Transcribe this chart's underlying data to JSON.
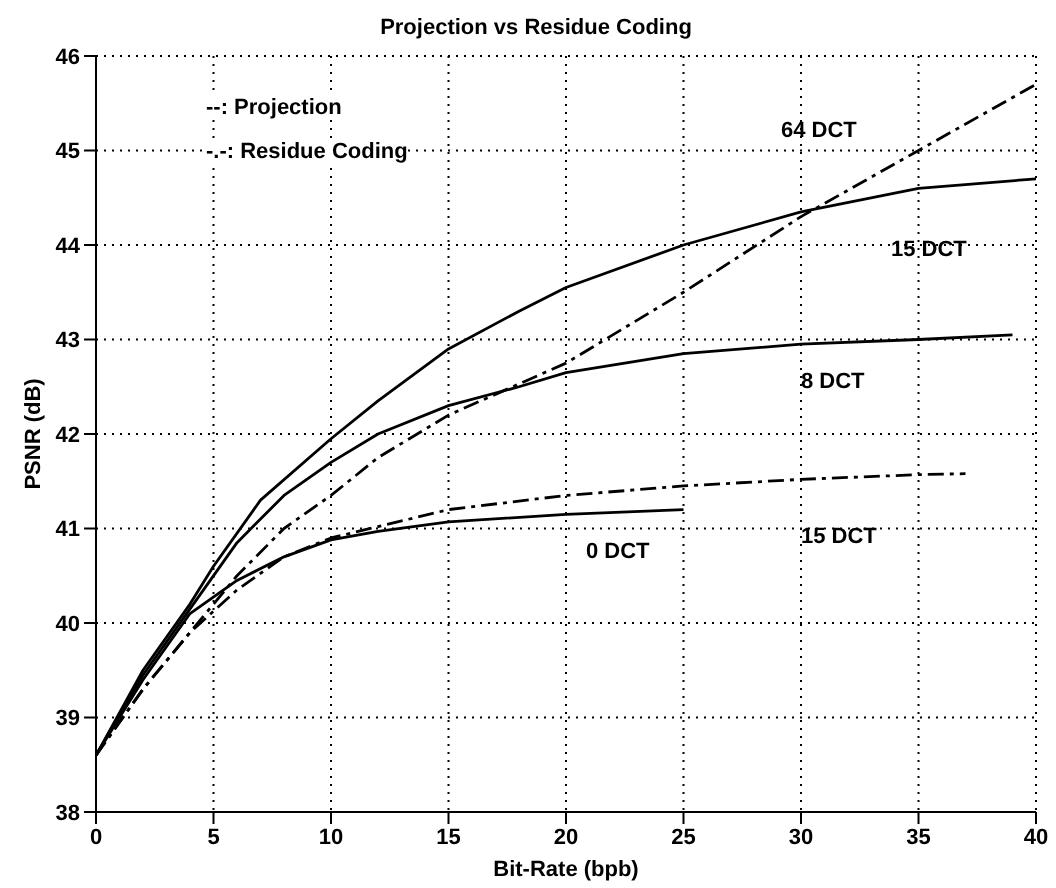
{
  "chart_data": {
    "type": "line",
    "title": "Projection vs Residue Coding",
    "xlabel": "Bit-Rate (bpb)",
    "ylabel": "PSNR (dB)",
    "annotations": [
      "--: Projection",
      "-.-: Residue Coding"
    ],
    "xlim": [
      0,
      40
    ],
    "xticks": [
      0,
      5,
      10,
      15,
      20,
      25,
      30,
      35,
      40
    ],
    "ylim": [
      38,
      46
    ],
    "yticks": [
      38,
      39,
      40,
      41,
      42,
      43,
      44,
      45,
      46
    ],
    "grid": true,
    "legend": false,
    "marker": "none",
    "series": [
      {
        "name": "64 DCT",
        "color": "#000000",
        "line_style": "dashdot",
        "x": [
          0,
          2,
          4,
          6,
          8,
          10,
          12,
          15,
          20,
          25,
          30,
          35,
          40
        ],
        "values": [
          38.6,
          39.3,
          39.9,
          40.5,
          41.0,
          41.35,
          41.75,
          42.2,
          42.75,
          43.5,
          44.3,
          45.0,
          45.7
        ]
      },
      {
        "name": "15 DCT",
        "color": "#000000",
        "line_style": "solid",
        "x": [
          0,
          2,
          4,
          5,
          7,
          10,
          12,
          15,
          18,
          20,
          25,
          30,
          35,
          40
        ],
        "values": [
          38.6,
          39.5,
          40.2,
          40.6,
          41.3,
          41.95,
          42.35,
          42.9,
          43.3,
          43.55,
          44.0,
          44.35,
          44.6,
          44.7
        ]
      },
      {
        "name": "8 DCT",
        "color": "#000000",
        "line_style": "solid",
        "x": [
          0,
          2,
          4,
          6,
          8,
          10,
          12,
          15,
          18,
          20,
          25,
          30,
          35,
          39
        ],
        "values": [
          38.6,
          39.45,
          40.15,
          40.85,
          41.35,
          41.7,
          42.0,
          42.3,
          42.5,
          42.65,
          42.85,
          42.95,
          43.0,
          43.05
        ]
      },
      {
        "name": "15 DCT",
        "color": "#000000",
        "line_style": "dashdot",
        "x": [
          0,
          2,
          4,
          6,
          8,
          10,
          12,
          15,
          20,
          25,
          30,
          35,
          37
        ],
        "values": [
          38.6,
          39.3,
          39.9,
          40.35,
          40.7,
          40.9,
          41.02,
          41.2,
          41.35,
          41.45,
          41.52,
          41.57,
          41.58
        ]
      },
      {
        "name": "0 DCT",
        "color": "#000000",
        "line_style": "solid",
        "x": [
          0,
          2,
          4,
          6,
          8,
          10,
          12,
          15,
          20,
          25
        ],
        "values": [
          38.6,
          39.4,
          40.1,
          40.45,
          40.7,
          40.88,
          40.97,
          41.07,
          41.15,
          41.2
        ]
      }
    ]
  }
}
